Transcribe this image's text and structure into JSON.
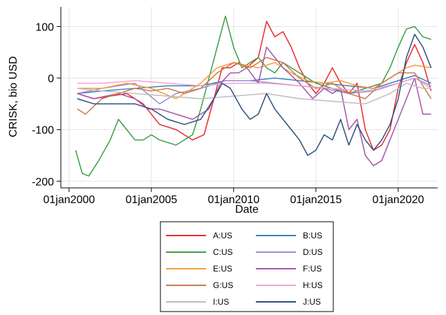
{
  "chart_data": {
    "type": "line",
    "title": "",
    "xlabel": "Date",
    "ylabel": "CRISK, bio USD",
    "x_ticks": [
      {
        "year": 2000,
        "label": "01jan2000"
      },
      {
        "year": 2005,
        "label": "01jan2005"
      },
      {
        "year": 2010,
        "label": "01jan2010"
      },
      {
        "year": 2015,
        "label": "01jan2015"
      },
      {
        "year": 2020,
        "label": "01jan2020"
      }
    ],
    "y_ticks": [
      -200,
      -100,
      0,
      100
    ],
    "xlim": [
      1999.5,
      2022.4
    ],
    "ylim": [
      -213,
      138
    ],
    "grid": true,
    "legend_position": "bottom",
    "series": [
      {
        "name": "A:US",
        "color": "#e8282c",
        "points": [
          [
            2000.5,
            -30
          ],
          [
            2001.5,
            -40
          ],
          [
            2002.5,
            -35
          ],
          [
            2003.5,
            -30
          ],
          [
            2004.5,
            -50
          ],
          [
            2005.5,
            -90
          ],
          [
            2006.5,
            -100
          ],
          [
            2007.5,
            -120
          ],
          [
            2008.2,
            -110
          ],
          [
            2008.8,
            -40
          ],
          [
            2009.3,
            20
          ],
          [
            2009.8,
            20
          ],
          [
            2010.3,
            30
          ],
          [
            2010.8,
            20
          ],
          [
            2011.5,
            40
          ],
          [
            2012.0,
            110
          ],
          [
            2012.5,
            80
          ],
          [
            2013.0,
            90
          ],
          [
            2013.5,
            60
          ],
          [
            2014.0,
            20
          ],
          [
            2014.5,
            -10
          ],
          [
            2015.0,
            -30
          ],
          [
            2015.5,
            -10
          ],
          [
            2016.0,
            20
          ],
          [
            2016.5,
            -10
          ],
          [
            2017.0,
            -30
          ],
          [
            2017.5,
            -10
          ],
          [
            2018.0,
            -100
          ],
          [
            2018.5,
            -140
          ],
          [
            2019.0,
            -130
          ],
          [
            2019.5,
            -100
          ],
          [
            2020.0,
            -20
          ],
          [
            2020.5,
            30
          ],
          [
            2021.0,
            65
          ],
          [
            2021.5,
            30
          ],
          [
            2022.0,
            -25
          ]
        ]
      },
      {
        "name": "B:US",
        "color": "#3d7fbf",
        "points": [
          [
            2000.5,
            -30
          ],
          [
            2002.0,
            -25
          ],
          [
            2004.0,
            -20
          ],
          [
            2006.0,
            -15
          ],
          [
            2008.0,
            -15
          ],
          [
            2009.5,
            -5
          ],
          [
            2011.0,
            -5
          ],
          [
            2012.5,
            0
          ],
          [
            2014.0,
            -5
          ],
          [
            2015.5,
            -10
          ],
          [
            2017.0,
            -15
          ],
          [
            2018.5,
            -20
          ],
          [
            2020.0,
            -5
          ],
          [
            2021.0,
            5
          ],
          [
            2022.0,
            -10
          ]
        ]
      },
      {
        "name": "C:US",
        "color": "#3c9e43",
        "points": [
          [
            2000.4,
            -140
          ],
          [
            2000.8,
            -185
          ],
          [
            2001.2,
            -190
          ],
          [
            2001.8,
            -160
          ],
          [
            2002.5,
            -120
          ],
          [
            2003.0,
            -80
          ],
          [
            2003.5,
            -100
          ],
          [
            2004.0,
            -120
          ],
          [
            2004.5,
            -120
          ],
          [
            2005.0,
            -110
          ],
          [
            2005.5,
            -120
          ],
          [
            2006.0,
            -125
          ],
          [
            2006.5,
            -130
          ],
          [
            2007.0,
            -120
          ],
          [
            2007.5,
            -110
          ],
          [
            2008.0,
            -60
          ],
          [
            2008.5,
            0
          ],
          [
            2009.0,
            60
          ],
          [
            2009.5,
            120
          ],
          [
            2010.0,
            60
          ],
          [
            2010.5,
            20
          ],
          [
            2011.0,
            30
          ],
          [
            2011.5,
            40
          ],
          [
            2012.0,
            20
          ],
          [
            2012.5,
            10
          ],
          [
            2013.0,
            30
          ],
          [
            2013.5,
            20
          ],
          [
            2014.0,
            10
          ],
          [
            2015.0,
            -10
          ],
          [
            2016.0,
            -20
          ],
          [
            2017.0,
            -30
          ],
          [
            2018.0,
            -20
          ],
          [
            2019.0,
            -10
          ],
          [
            2019.5,
            20
          ],
          [
            2020.0,
            60
          ],
          [
            2020.5,
            95
          ],
          [
            2021.0,
            100
          ],
          [
            2021.5,
            80
          ],
          [
            2022.0,
            75
          ]
        ]
      },
      {
        "name": "D:US",
        "color": "#9b8bd4",
        "points": [
          [
            2000.5,
            -30
          ],
          [
            2002.0,
            -20
          ],
          [
            2004.0,
            -10
          ],
          [
            2005.5,
            -50
          ],
          [
            2006.5,
            -30
          ],
          [
            2008.0,
            -20
          ],
          [
            2009.5,
            -5
          ],
          [
            2011.0,
            -5
          ],
          [
            2012.5,
            -10
          ],
          [
            2014.0,
            -15
          ],
          [
            2015.5,
            -20
          ],
          [
            2017.0,
            -30
          ],
          [
            2018.5,
            -25
          ],
          [
            2020.0,
            -10
          ],
          [
            2021.0,
            0
          ],
          [
            2022.0,
            -15
          ]
        ]
      },
      {
        "name": "E:US",
        "color": "#f29d38",
        "points": [
          [
            2000.5,
            -20
          ],
          [
            2002.0,
            -20
          ],
          [
            2003.5,
            -10
          ],
          [
            2005.0,
            -20
          ],
          [
            2006.5,
            -40
          ],
          [
            2008.0,
            -10
          ],
          [
            2009.0,
            20
          ],
          [
            2010.0,
            30
          ],
          [
            2011.5,
            20
          ],
          [
            2012.5,
            30
          ],
          [
            2013.5,
            10
          ],
          [
            2014.5,
            -5
          ],
          [
            2015.5,
            -10
          ],
          [
            2016.5,
            -5
          ],
          [
            2017.5,
            -15
          ],
          [
            2018.5,
            -20
          ],
          [
            2019.5,
            0
          ],
          [
            2020.5,
            20
          ],
          [
            2021.0,
            25
          ],
          [
            2022.0,
            20
          ]
        ]
      },
      {
        "name": "F:US",
        "color": "#a553ab",
        "points": [
          [
            2000.5,
            -30
          ],
          [
            2001.5,
            -40
          ],
          [
            2003.0,
            -30
          ],
          [
            2004.0,
            -40
          ],
          [
            2004.8,
            -60
          ],
          [
            2005.5,
            -60
          ],
          [
            2006.5,
            -70
          ],
          [
            2007.5,
            -80
          ],
          [
            2008.5,
            -60
          ],
          [
            2009.2,
            -10
          ],
          [
            2009.8,
            10
          ],
          [
            2010.3,
            10
          ],
          [
            2010.8,
            20
          ],
          [
            2011.5,
            -10
          ],
          [
            2012.0,
            60
          ],
          [
            2012.5,
            40
          ],
          [
            2013.0,
            20
          ],
          [
            2014.0,
            -10
          ],
          [
            2014.8,
            -40
          ],
          [
            2015.5,
            -20
          ],
          [
            2016.0,
            -30
          ],
          [
            2016.5,
            -20
          ],
          [
            2017.0,
            -100
          ],
          [
            2017.5,
            -80
          ],
          [
            2018.0,
            -150
          ],
          [
            2018.5,
            -170
          ],
          [
            2019.0,
            -160
          ],
          [
            2019.5,
            -120
          ],
          [
            2020.0,
            -80
          ],
          [
            2020.5,
            -40
          ],
          [
            2021.0,
            0
          ],
          [
            2021.5,
            -70
          ],
          [
            2022.0,
            -70
          ]
        ]
      },
      {
        "name": "G:US",
        "color": "#c87a48",
        "points": [
          [
            2000.5,
            -60
          ],
          [
            2001.0,
            -70
          ],
          [
            2002.0,
            -40
          ],
          [
            2003.0,
            -30
          ],
          [
            2004.0,
            -20
          ],
          [
            2005.0,
            -25
          ],
          [
            2006.0,
            -20
          ],
          [
            2007.0,
            -30
          ],
          [
            2008.0,
            -20
          ],
          [
            2009.0,
            10
          ],
          [
            2010.0,
            30
          ],
          [
            2011.0,
            20
          ],
          [
            2012.0,
            40
          ],
          [
            2013.0,
            30
          ],
          [
            2014.0,
            0
          ],
          [
            2015.0,
            -20
          ],
          [
            2016.0,
            -10
          ],
          [
            2017.0,
            -30
          ],
          [
            2018.0,
            -40
          ],
          [
            2019.0,
            -10
          ],
          [
            2020.0,
            10
          ],
          [
            2021.0,
            10
          ],
          [
            2022.0,
            -40
          ]
        ]
      },
      {
        "name": "H:US",
        "color": "#f3a2cf",
        "points": [
          [
            2000.5,
            -10
          ],
          [
            2002.0,
            -10
          ],
          [
            2004.0,
            -5
          ],
          [
            2006.0,
            -10
          ],
          [
            2008.0,
            -15
          ],
          [
            2010.0,
            -10
          ],
          [
            2012.0,
            -10
          ],
          [
            2014.0,
            -15
          ],
          [
            2016.0,
            -20
          ],
          [
            2018.0,
            -25
          ],
          [
            2020.0,
            -10
          ],
          [
            2021.0,
            0
          ],
          [
            2022.0,
            -20
          ]
        ]
      },
      {
        "name": "I:US",
        "color": "#bdbdbd",
        "points": [
          [
            2000.5,
            -20
          ],
          [
            2002.0,
            -25
          ],
          [
            2004.0,
            -30
          ],
          [
            2006.0,
            -35
          ],
          [
            2008.0,
            -40
          ],
          [
            2010.0,
            -35
          ],
          [
            2012.0,
            -30
          ],
          [
            2014.0,
            -40
          ],
          [
            2016.0,
            -45
          ],
          [
            2018.0,
            -50
          ],
          [
            2019.5,
            -30
          ],
          [
            2020.5,
            -10
          ],
          [
            2021.5,
            -20
          ],
          [
            2022.0,
            -20
          ]
        ]
      },
      {
        "name": "J:US",
        "color": "#2b4f7a",
        "points": [
          [
            2000.5,
            -40
          ],
          [
            2001.5,
            -50
          ],
          [
            2003.0,
            -50
          ],
          [
            2004.0,
            -50
          ],
          [
            2005.0,
            -60
          ],
          [
            2006.0,
            -80
          ],
          [
            2007.0,
            -90
          ],
          [
            2008.0,
            -80
          ],
          [
            2008.8,
            -40
          ],
          [
            2009.3,
            -10
          ],
          [
            2009.8,
            -20
          ],
          [
            2010.5,
            -60
          ],
          [
            2011.0,
            -80
          ],
          [
            2011.5,
            -70
          ],
          [
            2012.0,
            -30
          ],
          [
            2012.5,
            -60
          ],
          [
            2013.0,
            -80
          ],
          [
            2013.5,
            -100
          ],
          [
            2014.0,
            -120
          ],
          [
            2014.5,
            -150
          ],
          [
            2015.0,
            -140
          ],
          [
            2015.5,
            -110
          ],
          [
            2016.0,
            -120
          ],
          [
            2016.5,
            -80
          ],
          [
            2017.0,
            -130
          ],
          [
            2017.5,
            -90
          ],
          [
            2018.0,
            -120
          ],
          [
            2018.5,
            -140
          ],
          [
            2019.0,
            -120
          ],
          [
            2019.5,
            -90
          ],
          [
            2020.0,
            -40
          ],
          [
            2020.5,
            40
          ],
          [
            2021.0,
            85
          ],
          [
            2021.5,
            60
          ],
          [
            2022.0,
            20
          ]
        ]
      }
    ]
  }
}
